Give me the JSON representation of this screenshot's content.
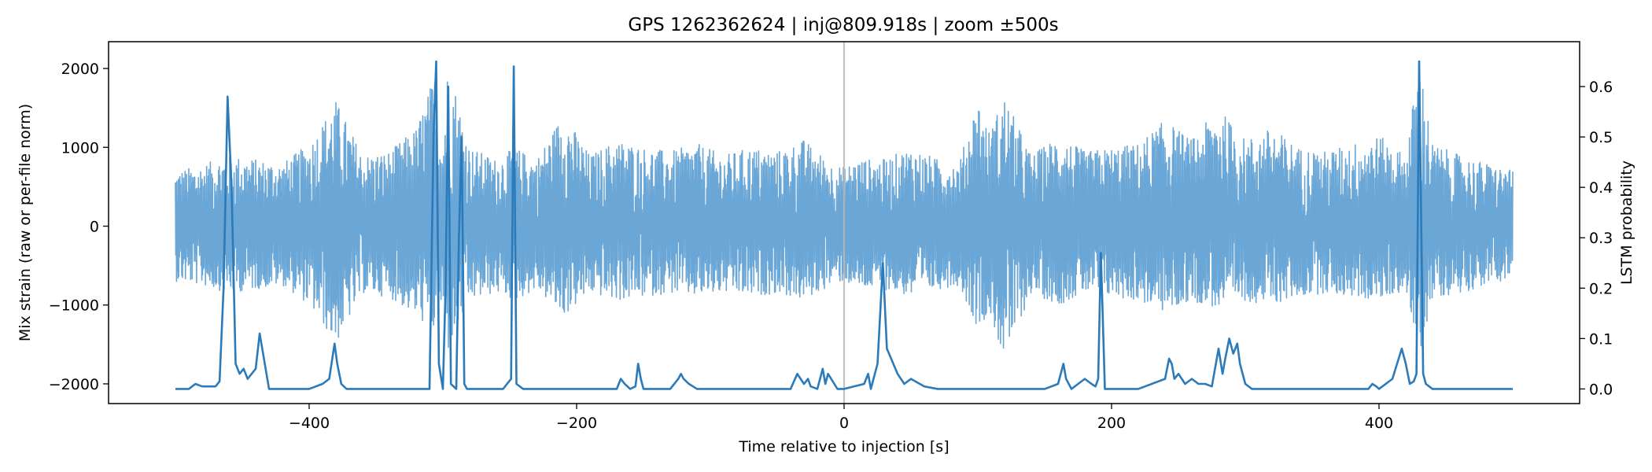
{
  "chart_data": {
    "type": "line",
    "title": "GPS 1262362624 | inj@809.918s | zoom ±500s",
    "xlabel": "Time relative to injection [s]",
    "ylabel_left": "Mix strain (raw or per-file norm)",
    "ylabel_right": "LSTM probability",
    "xlim": [
      -550,
      550
    ],
    "ylim_left": [
      -2250,
      2340
    ],
    "ylim_right": [
      -0.029,
      0.689
    ],
    "x_ticks": [
      -400,
      -200,
      0,
      200,
      400
    ],
    "x_tick_labels": [
      "−400",
      "−200",
      "0",
      "200",
      "400"
    ],
    "y_left_ticks": [
      -2000,
      -1000,
      0,
      1000,
      2000
    ],
    "y_left_tick_labels": [
      "−2000",
      "−1000",
      "0",
      "1000",
      "2000"
    ],
    "y_right_ticks": [
      0.0,
      0.1,
      0.2,
      0.3,
      0.4,
      0.5,
      0.6
    ],
    "y_right_tick_labels": [
      "0.0",
      "0.1",
      "0.2",
      "0.3",
      "0.4",
      "0.5",
      "0.6"
    ],
    "injection_marker_x": 0,
    "grid": false,
    "colors": {
      "strain": "#6aa6d6",
      "probability": "#2b7bba",
      "injection_line": "#b8b8b8"
    },
    "series": [
      {
        "axis": "left",
        "envelope": {
          "x": [
            -500,
            -480,
            -460,
            -440,
            -420,
            -400,
            -380,
            -360,
            -340,
            -320,
            -306,
            -300,
            -296,
            -280,
            -260,
            -246,
            -230,
            -210,
            -190,
            -170,
            -150,
            -130,
            -110,
            -90,
            -70,
            -50,
            -30,
            -10,
            0,
            10,
            30,
            50,
            70,
            86,
            100,
            108,
            120,
            140,
            160,
            180,
            200,
            220,
            240,
            260,
            280,
            300,
            320,
            340,
            360,
            380,
            400,
            420,
            430,
            440,
            460,
            480,
            500
          ],
          "upper": [
            700,
            780,
            900,
            850,
            800,
            1050,
            1600,
            900,
            950,
            1250,
            1940,
            1100,
            2130,
            1000,
            850,
            1000,
            850,
            1450,
            900,
            1100,
            1000,
            950,
            1050,
            900,
            1000,
            950,
            1100,
            800,
            750,
            850,
            850,
            1000,
            850,
            800,
            1650,
            1200,
            1650,
            900,
            1150,
            950,
            1000,
            1050,
            1350,
            1100,
            1500,
            1100,
            1250,
            1000,
            950,
            1050,
            1150,
            900,
            2130,
            1050,
            900,
            800,
            700
          ],
          "lower": [
            -700,
            -750,
            -850,
            -800,
            -750,
            -1000,
            -1500,
            -850,
            -900,
            -1150,
            -1350,
            -1050,
            -1600,
            -950,
            -850,
            -950,
            -800,
            -1150,
            -850,
            -950,
            -900,
            -850,
            -900,
            -850,
            -900,
            -850,
            -950,
            -750,
            -700,
            -800,
            -800,
            -900,
            -800,
            -750,
            -1300,
            -1100,
            -1700,
            -850,
            -1000,
            -850,
            -900,
            -950,
            -1100,
            -950,
            -1050,
            -950,
            -1000,
            -900,
            -850,
            -900,
            -950,
            -800,
            -1700,
            -900,
            -850,
            -750,
            -650
          ]
        }
      },
      {
        "axis": "right",
        "x": [
          -500,
          -490,
          -485,
          -480,
          -470,
          -467,
          -464,
          -461,
          -458,
          -455,
          -452,
          -449,
          -446,
          -443,
          -440,
          -437,
          -430,
          -400,
          -390,
          -385,
          -381,
          -379,
          -376,
          -372,
          -360,
          -320,
          -310,
          -307,
          -305,
          -303,
          -300,
          -298,
          -296,
          -294,
          -290,
          -288,
          -286,
          -284,
          -282,
          -270,
          -255,
          -249,
          -247,
          -245,
          -240,
          -220,
          -180,
          -170,
          -167,
          -164,
          -160,
          -156,
          -154,
          -152,
          -150,
          -140,
          -130,
          -124,
          -122,
          -120,
          -116,
          -110,
          -60,
          -40,
          -35,
          -30,
          -27,
          -25,
          -20,
          -16,
          -14,
          -12,
          -5,
          0,
          15,
          18,
          20,
          25,
          29,
          32,
          40,
          45,
          50,
          60,
          70,
          150,
          160,
          164,
          166,
          170,
          175,
          180,
          185,
          188,
          190,
          192,
          195,
          200,
          220,
          240,
          243,
          245,
          247,
          250,
          255,
          260,
          265,
          270,
          275,
          280,
          283,
          285,
          288,
          291,
          294,
          296,
          300,
          305,
          310,
          320,
          380,
          392,
          395,
          398,
          400,
          410,
          417,
          420,
          423,
          426,
          428,
          430,
          433,
          435,
          440,
          445,
          450,
          470,
          500
        ],
        "y": [
          0,
          0,
          0.01,
          0.005,
          0.005,
          0.015,
          0.2,
          0.58,
          0.4,
          0.05,
          0.03,
          0.04,
          0.02,
          0.03,
          0.04,
          0.11,
          0,
          0,
          0.01,
          0.02,
          0.09,
          0.05,
          0.01,
          0,
          0,
          0,
          0,
          0.5,
          0.65,
          0.05,
          0,
          0.2,
          0.6,
          0.01,
          0,
          0.3,
          0.5,
          0.01,
          0,
          0,
          0,
          0.02,
          0.64,
          0.01,
          0,
          0,
          0,
          0,
          0.02,
          0.01,
          0,
          0.005,
          0.05,
          0.02,
          0,
          0,
          0,
          0.02,
          0.03,
          0.02,
          0.01,
          0,
          0,
          0,
          0.03,
          0.01,
          0.02,
          0.005,
          0,
          0.04,
          0.01,
          0.03,
          0,
          0,
          0.01,
          0.03,
          0,
          0.05,
          0.25,
          0.08,
          0.03,
          0.01,
          0.02,
          0.005,
          0,
          0,
          0.01,
          0.05,
          0.02,
          0,
          0.01,
          0.02,
          0.01,
          0.005,
          0.02,
          0.27,
          0,
          0,
          0,
          0.02,
          0.06,
          0.05,
          0.02,
          0.03,
          0.01,
          0.02,
          0.01,
          0.01,
          0.005,
          0.08,
          0.03,
          0.06,
          0.1,
          0.07,
          0.09,
          0.05,
          0.01,
          0,
          0,
          0,
          0,
          0,
          0.01,
          0.005,
          0,
          0.02,
          0.08,
          0.05,
          0.01,
          0.015,
          0.03,
          0.65,
          0.03,
          0.01,
          0,
          0,
          0,
          0,
          0
        ]
      }
    ]
  }
}
